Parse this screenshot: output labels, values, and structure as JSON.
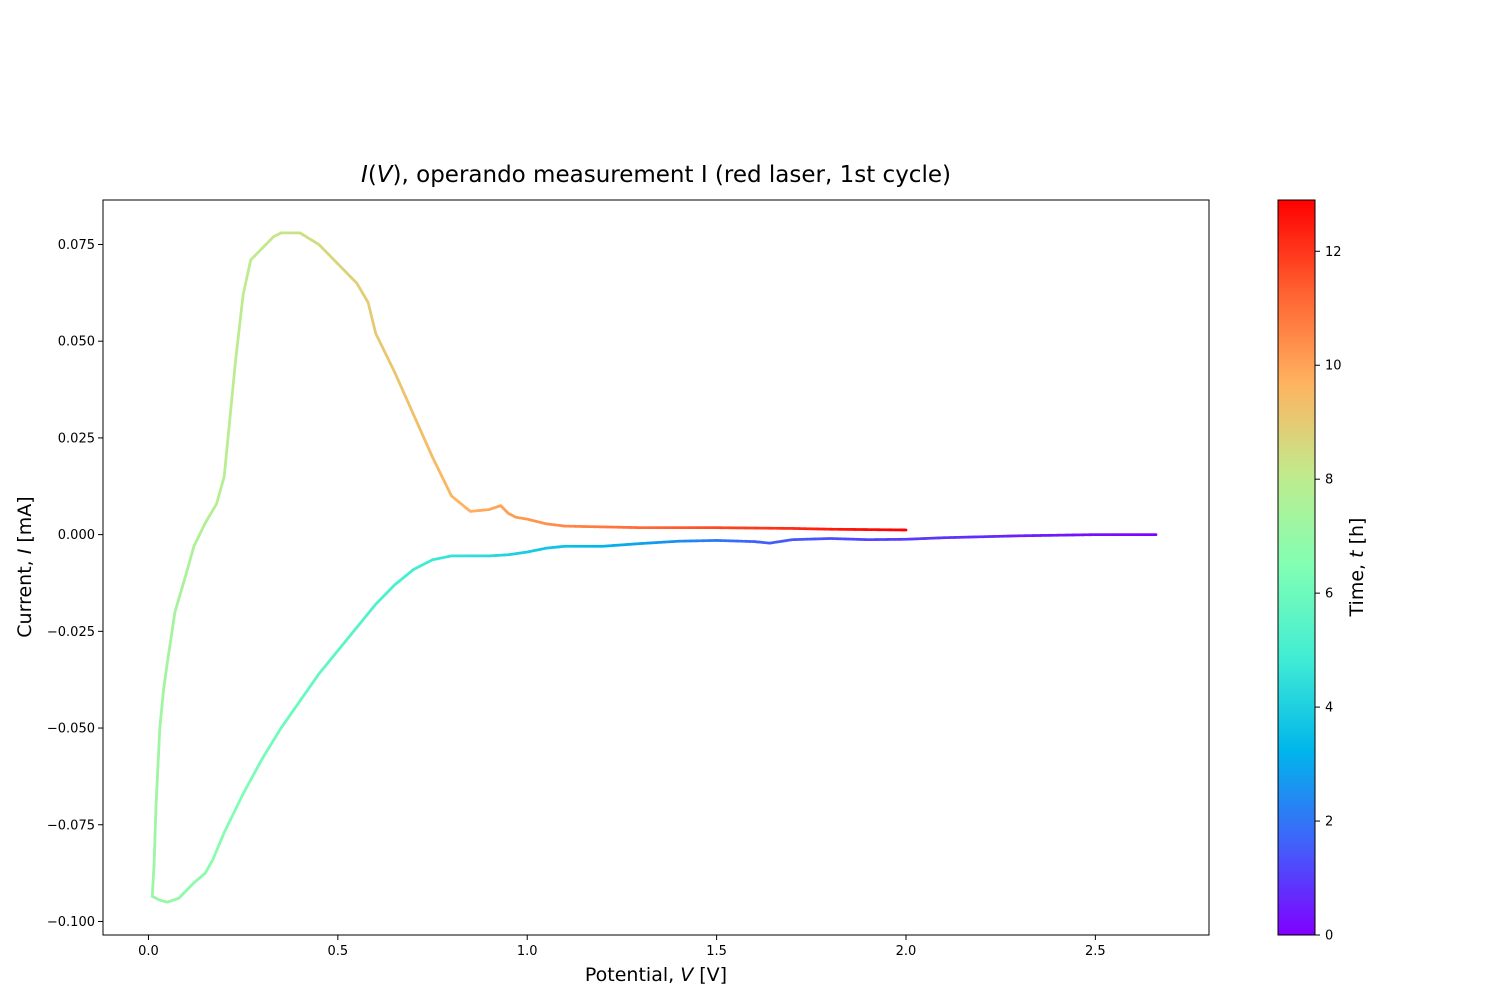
{
  "chart_data": {
    "type": "scatter",
    "title": "I(V), operando measurement I (red laser, 1st cycle)",
    "title_parts": {
      "italic_lead": "I",
      "open": "(",
      "italic_var": "V",
      "rest": "), operando measurement I (red laser, 1st cycle)"
    },
    "xlabel": "Potential, V [V]",
    "xlabel_parts": {
      "pre": "Potential, ",
      "italic": "V",
      "post": " [V]"
    },
    "ylabel": "Current, I [mA]",
    "ylabel_parts": {
      "pre": "Current, ",
      "italic": "I",
      "post": " [mA]"
    },
    "xlim": [
      -0.12,
      2.8
    ],
    "ylim": [
      -0.1035,
      0.0865
    ],
    "xticks": [
      0.0,
      0.5,
      1.0,
      1.5,
      2.0,
      2.5
    ],
    "xtick_labels": [
      "0.0",
      "0.5",
      "1.0",
      "1.5",
      "2.0",
      "2.5"
    ],
    "yticks": [
      -0.1,
      -0.075,
      -0.05,
      -0.025,
      0.0,
      0.025,
      0.05,
      0.075
    ],
    "ytick_labels": [
      "−0.100",
      "−0.075",
      "−0.050",
      "−0.025",
      "0.000",
      "0.025",
      "0.050",
      "0.075"
    ],
    "grid": false,
    "colormap": "rainbow",
    "colorbar": {
      "label": "Time, t [h]",
      "label_parts": {
        "pre": "Time, ",
        "italic": "t",
        "post": " [h]"
      },
      "range": [
        0,
        12.9
      ],
      "ticks": [
        0,
        2,
        4,
        6,
        8,
        10,
        12
      ],
      "tick_labels": [
        "0",
        "2",
        "4",
        "6",
        "8",
        "10",
        "12"
      ]
    },
    "series": [
      {
        "x": [
          2.66,
          2.5,
          2.3,
          2.1,
          2.0,
          1.9,
          1.8,
          1.7,
          1.64,
          1.6,
          1.5,
          1.4,
          1.3,
          1.2,
          1.1,
          1.05,
          1.0,
          0.95,
          0.9,
          0.85,
          0.8,
          0.75,
          0.7,
          0.65,
          0.6,
          0.55,
          0.5,
          0.45,
          0.4,
          0.35,
          0.3,
          0.25,
          0.2,
          0.17,
          0.15,
          0.12,
          0.1,
          0.08,
          0.05,
          0.03,
          0.01,
          0.015,
          0.02,
          0.03,
          0.04,
          0.05,
          0.07,
          0.1,
          0.12,
          0.15,
          0.18,
          0.2,
          0.21,
          0.23,
          0.25,
          0.27,
          0.3,
          0.33,
          0.35,
          0.4,
          0.45,
          0.5,
          0.55,
          0.58,
          0.6,
          0.65,
          0.7,
          0.75,
          0.8,
          0.85,
          0.9,
          0.93,
          0.95,
          0.97,
          1.0,
          1.05,
          1.1,
          1.2,
          1.3,
          1.5,
          1.7,
          1.8,
          1.9,
          2.0
        ],
        "y": [
          0.0,
          0.0,
          -0.0003,
          -0.0008,
          -0.0012,
          -0.0013,
          -0.001,
          -0.0013,
          -0.0022,
          -0.0018,
          -0.0015,
          -0.0017,
          -0.0023,
          -0.003,
          -0.003,
          -0.0035,
          -0.0045,
          -0.0052,
          -0.0055,
          -0.0055,
          -0.0055,
          -0.0065,
          -0.009,
          -0.013,
          -0.018,
          -0.024,
          -0.03,
          -0.036,
          -0.043,
          -0.05,
          -0.058,
          -0.067,
          -0.077,
          -0.084,
          -0.0875,
          -0.09,
          -0.092,
          -0.094,
          -0.095,
          -0.0945,
          -0.0935,
          -0.085,
          -0.07,
          -0.05,
          -0.04,
          -0.033,
          -0.02,
          -0.01,
          -0.003,
          0.003,
          0.008,
          0.015,
          0.025,
          0.045,
          0.062,
          0.071,
          0.074,
          0.077,
          0.078,
          0.078,
          0.075,
          0.07,
          0.065,
          0.06,
          0.052,
          0.042,
          0.031,
          0.02,
          0.01,
          0.006,
          0.0065,
          0.0075,
          0.0055,
          0.0045,
          0.004,
          0.0028,
          0.0022,
          0.002,
          0.0018,
          0.0018,
          0.0016,
          0.0014,
          0.0013,
          0.0012
        ],
        "t": [
          0.0,
          0.25,
          0.55,
          0.85,
          1.0,
          1.15,
          1.3,
          1.45,
          1.55,
          1.6,
          2.05,
          2.45,
          2.85,
          3.2,
          3.55,
          3.7,
          3.85,
          4.05,
          4.25,
          4.4,
          4.55,
          4.75,
          4.95,
          5.1,
          5.25,
          5.45,
          5.6,
          5.75,
          5.9,
          6.05,
          6.2,
          6.4,
          6.55,
          6.65,
          6.7,
          6.8,
          6.85,
          6.9,
          7.0,
          7.05,
          7.1,
          7.15,
          7.2,
          7.25,
          7.3,
          7.35,
          7.4,
          7.5,
          7.6,
          7.7,
          7.8,
          7.85,
          7.9,
          7.95,
          8.0,
          8.05,
          8.1,
          8.2,
          8.25,
          8.4,
          8.55,
          8.7,
          8.85,
          8.95,
          9.0,
          9.15,
          9.3,
          9.45,
          9.6,
          9.75,
          9.9,
          10.0,
          10.05,
          10.1,
          10.2,
          10.35,
          10.5,
          10.8,
          11.1,
          11.7,
          12.2,
          12.45,
          12.7,
          12.9
        ]
      }
    ]
  }
}
